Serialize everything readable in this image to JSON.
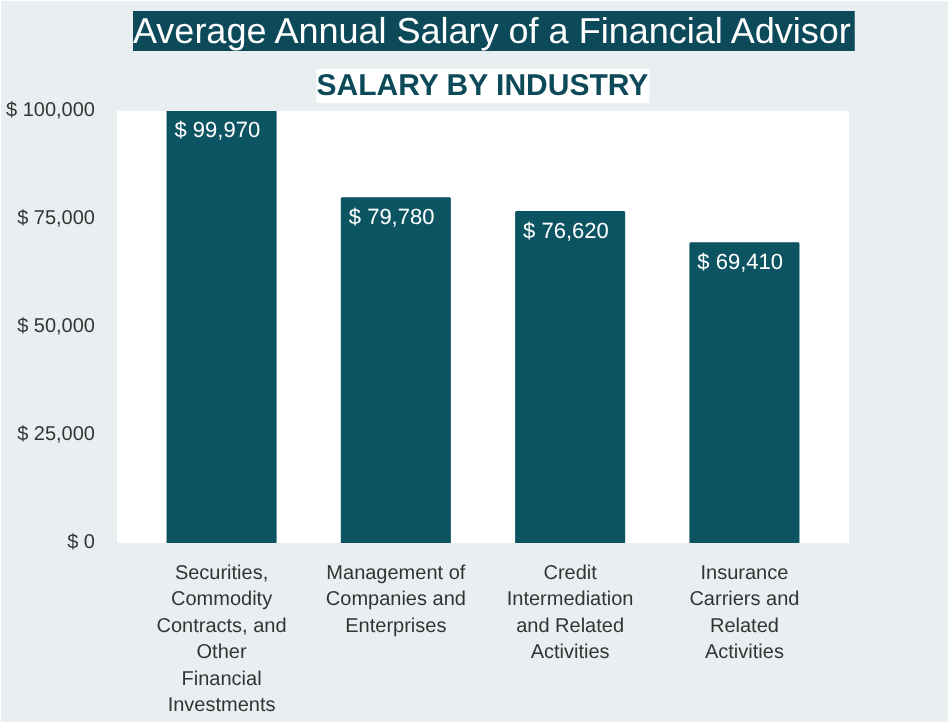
{
  "chart_data": {
    "type": "bar",
    "title": "Average Annual Salary of a Financial Advisor",
    "subtitle": "SALARY BY INDUSTRY",
    "categories": [
      "Securities, Commodity Contracts, and Other Financial Investments",
      "Management of Companies and Enterprises",
      "Credit Intermediation and Related Activities",
      "Insurance Carriers and Related Activities"
    ],
    "values": [
      99970,
      79780,
      76620,
      69410
    ],
    "value_labels": [
      "$ 99,970",
      "$ 79,780",
      "$ 76,620",
      "$ 69,410"
    ],
    "color": "#0d5463",
    "ylim": [
      0,
      100000
    ],
    "yticks": [
      {
        "value": 0,
        "label": "$ 0"
      },
      {
        "value": 25000,
        "label": "$ 25,000"
      },
      {
        "value": 50000,
        "label": "$ 50,000"
      },
      {
        "value": 75000,
        "label": "$ 75,000"
      },
      {
        "value": 100000,
        "label": "$ 100,000"
      }
    ],
    "grid": false
  }
}
